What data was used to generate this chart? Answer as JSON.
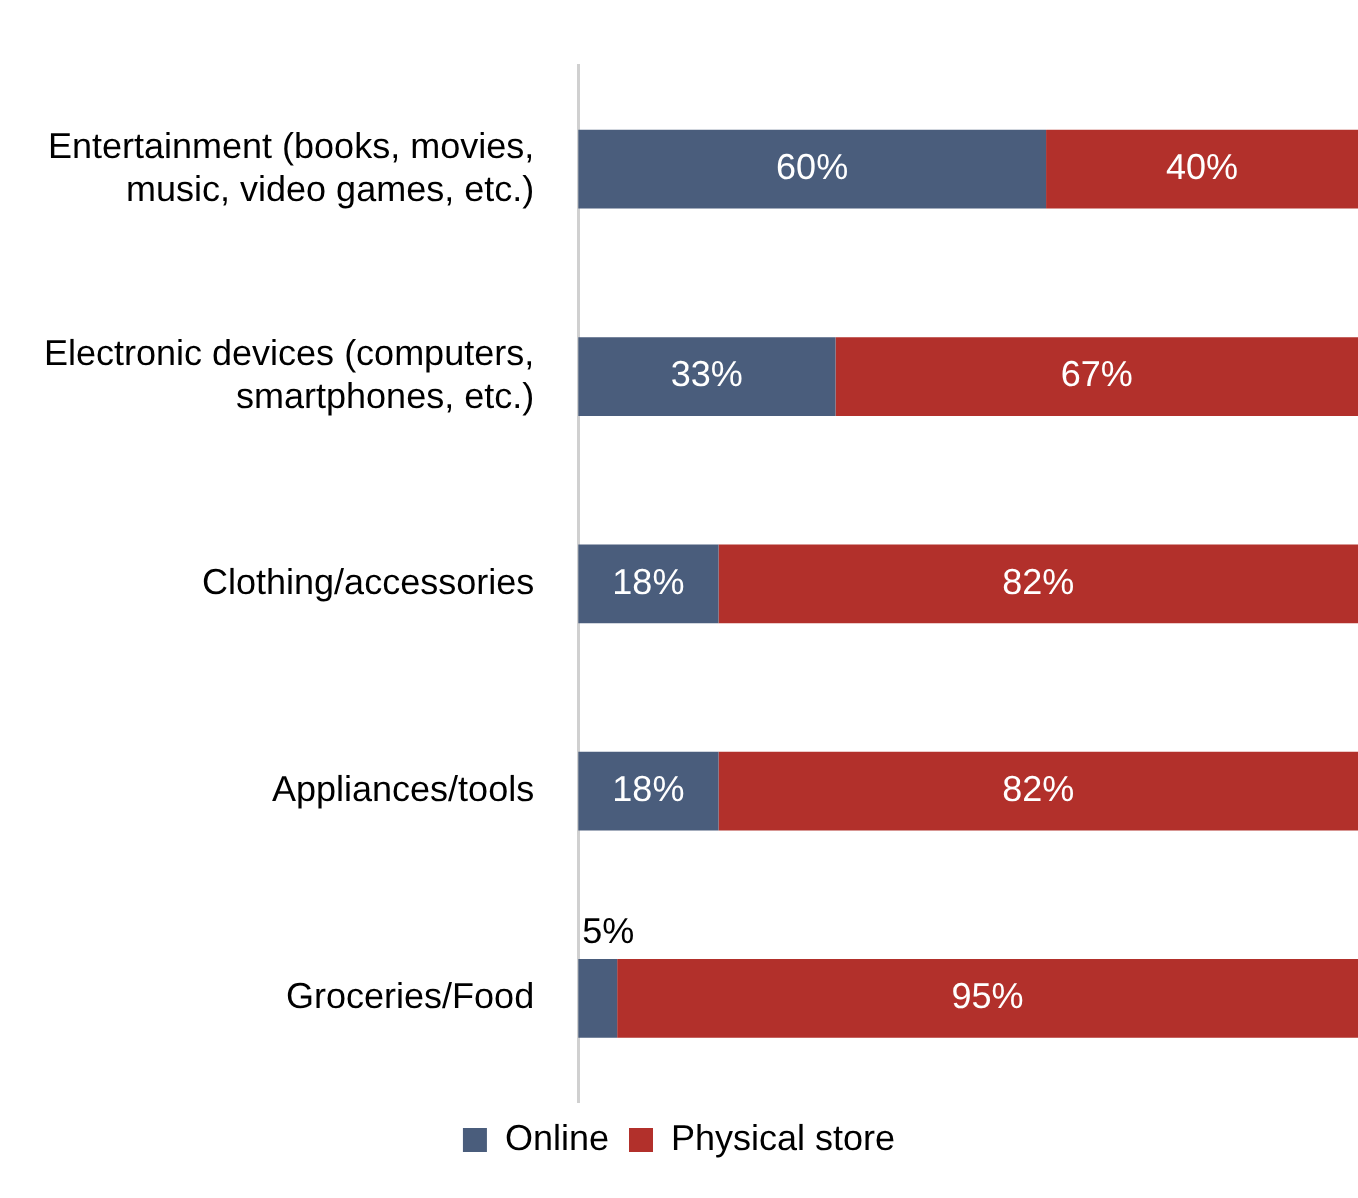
{
  "chart_data": {
    "type": "bar",
    "orientation": "horizontal",
    "stacked": true,
    "categories": [
      "Entertainment (books, movies, music, video games, etc.)",
      "Electronic devices (computers, smartphones, etc.)",
      "Clothing/accessories",
      "Appliances/tools",
      "Groceries/Food"
    ],
    "series": [
      {
        "name": "Online",
        "color": "#4a5d7c",
        "values": [
          60,
          33,
          18,
          18,
          5
        ],
        "value_labels": [
          "60%",
          "33%",
          "18%",
          "18%",
          "5%"
        ]
      },
      {
        "name": "Physical store",
        "color": "#b2302b",
        "values": [
          40,
          67,
          82,
          82,
          95
        ],
        "value_labels": [
          "40%",
          "67%",
          "82%",
          "82%",
          "95%"
        ]
      }
    ],
    "tick_labels": "y",
    "grid": false,
    "legend": "bottom"
  }
}
